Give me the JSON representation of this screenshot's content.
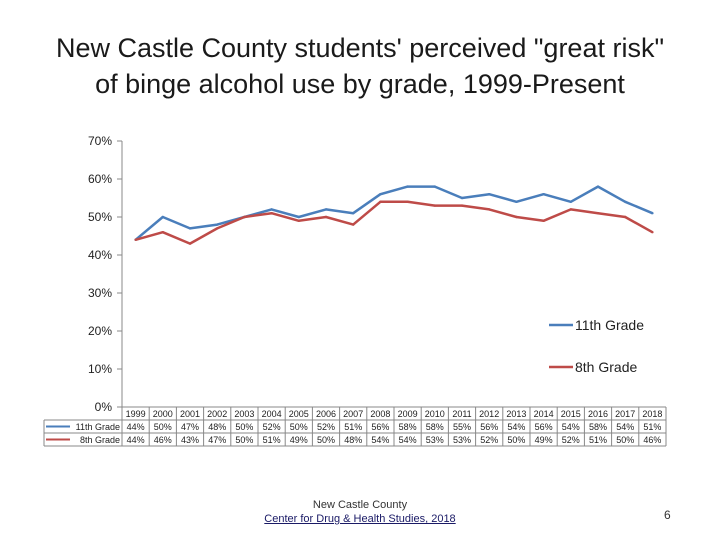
{
  "title": {
    "line1": "New Castle County students' perceived \"great risk\"",
    "line2": "of binge alcohol use by grade, 1999-Present"
  },
  "footer": {
    "source_line1": "New Castle County",
    "source_line2": "Center for Drug & Health Studies, 2018",
    "slide_number": "6"
  },
  "chart_data": {
    "type": "line",
    "title": "New Castle County students' perceived \"great risk\" of binge alcohol use by grade, 1999-Present",
    "xlabel": "",
    "ylabel": "",
    "ylim": [
      0,
      70
    ],
    "y_ticks": [
      "0%",
      "10%",
      "20%",
      "30%",
      "40%",
      "50%",
      "60%",
      "70%"
    ],
    "categories": [
      "1999",
      "2000",
      "2001",
      "2002",
      "2003",
      "2004",
      "2005",
      "2006",
      "2007",
      "2008",
      "2009",
      "2010",
      "2011",
      "2012",
      "2013",
      "2014",
      "2015",
      "2016",
      "2017",
      "2018"
    ],
    "series": [
      {
        "name": "11th Grade",
        "color": "#4a7ebb",
        "values": [
          44,
          50,
          47,
          48,
          50,
          52,
          50,
          52,
          51,
          56,
          58,
          58,
          55,
          56,
          54,
          56,
          54,
          58,
          54,
          51
        ],
        "labels": [
          "44%",
          "50%",
          "47%",
          "48%",
          "50%",
          "52%",
          "50%",
          "52%",
          "51%",
          "56%",
          "58%",
          "58%",
          "55%",
          "56%",
          "54%",
          "56%",
          "54%",
          "58%",
          "54%",
          "51%"
        ]
      },
      {
        "name": "8th Grade",
        "color": "#be4b48",
        "values": [
          44,
          46,
          43,
          47,
          50,
          51,
          49,
          50,
          48,
          54,
          54,
          53,
          53,
          52,
          50,
          49,
          52,
          51,
          50,
          46
        ],
        "labels": [
          "44%",
          "46%",
          "43%",
          "47%",
          "50%",
          "51%",
          "49%",
          "50%",
          "48%",
          "54%",
          "54%",
          "53%",
          "53%",
          "52%",
          "50%",
          "49%",
          "52%",
          "51%",
          "50%",
          "46%"
        ]
      }
    ],
    "legend": "right"
  }
}
